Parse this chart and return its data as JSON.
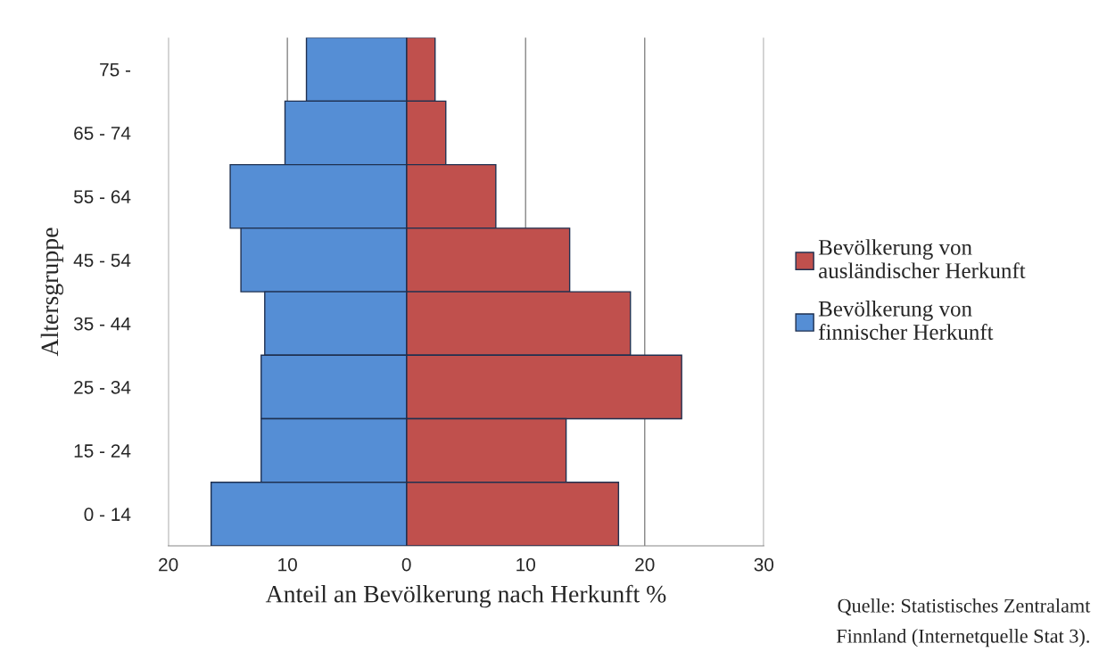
{
  "chart_data": {
    "type": "bar",
    "orientation": "horizontal",
    "xlabel": "Anteil an Bevölkerung nach Herkunft %",
    "ylabel": "Altersgruppe",
    "categories": [
      "75 -",
      "65 - 74",
      "55 - 64",
      "45 - 54",
      "35 - 44",
      "25 - 34",
      "15 - 24",
      "0 - 14"
    ],
    "series": [
      {
        "name": "Bevölkerung von\nausländischer Herkunft",
        "color": "#c0504d",
        "values": [
          2.4,
          3.3,
          7.5,
          13.7,
          18.8,
          23.1,
          13.4,
          17.8
        ]
      },
      {
        "name": "Bevölkerung von\nfinnischer Herkunft",
        "color": "#558ed5",
        "values": [
          -8.4,
          -10.2,
          -14.8,
          -13.9,
          -11.9,
          -12.2,
          -12.2,
          -16.4
        ]
      }
    ],
    "xlim": [
      -20,
      30
    ],
    "xticks": [
      {
        "value": -20,
        "label": "20"
      },
      {
        "value": -10,
        "label": "10"
      },
      0,
      10,
      20,
      30
    ],
    "stacked": true,
    "grid": "x",
    "legend": "right",
    "annotations": [
      "Quelle: Statistisches Zentralamt\nFinnland (Internetquelle Stat 3)."
    ]
  }
}
